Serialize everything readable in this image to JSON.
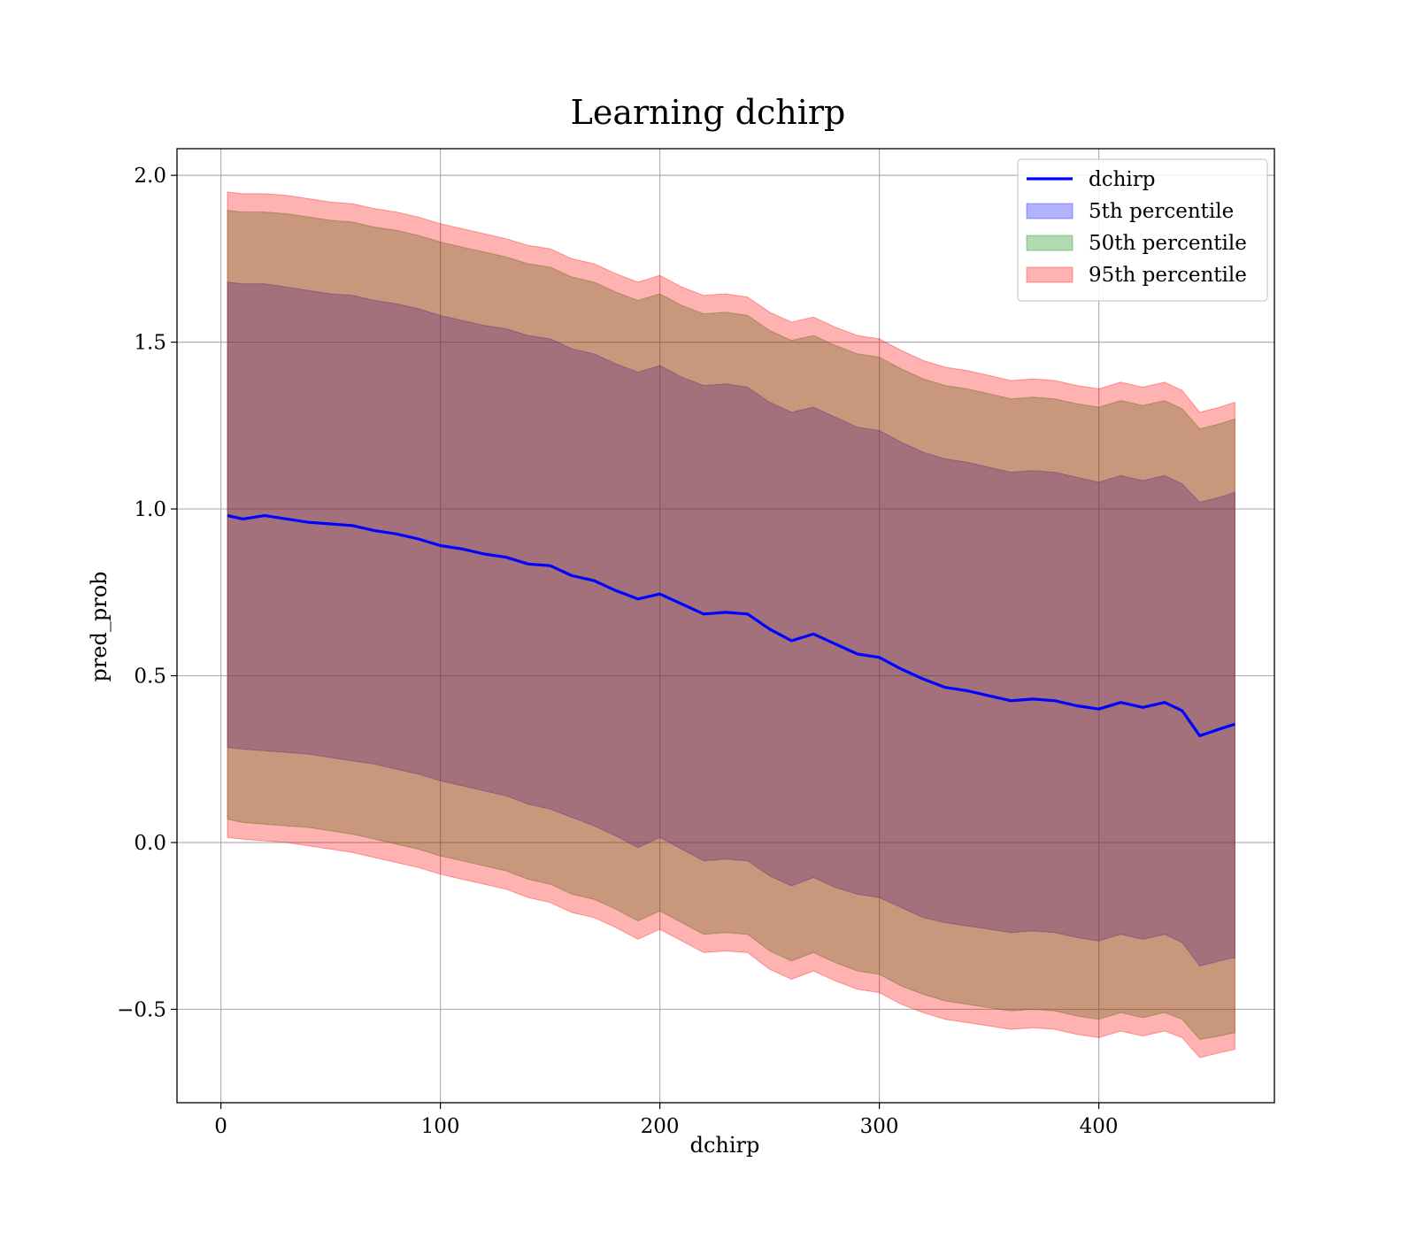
{
  "chart_data": {
    "type": "area",
    "title": "Learning dchirp",
    "xlabel": "dchirp",
    "ylabel": "pred_prob",
    "xlim": [
      -20,
      480
    ],
    "ylim": [
      -0.78,
      2.08
    ],
    "x_ticks": [
      0,
      100,
      200,
      300,
      400
    ],
    "x_tick_labels": [
      "0",
      "100",
      "200",
      "300",
      "400"
    ],
    "y_ticks": [
      -0.5,
      0.0,
      0.5,
      1.0,
      1.5,
      2.0
    ],
    "y_tick_labels": [
      "−0.5",
      "0.0",
      "0.5",
      "1.0",
      "1.5",
      "2.0"
    ],
    "grid": true,
    "legend_position": "top-right",
    "x": [
      3,
      10,
      20,
      30,
      40,
      50,
      60,
      70,
      80,
      90,
      100,
      110,
      120,
      130,
      140,
      150,
      160,
      170,
      180,
      190,
      200,
      210,
      220,
      230,
      240,
      250,
      260,
      270,
      280,
      290,
      300,
      310,
      320,
      330,
      340,
      350,
      360,
      370,
      380,
      390,
      400,
      410,
      420,
      430,
      438,
      446,
      455,
      462
    ],
    "series": [
      {
        "name": "dchirp",
        "kind": "line",
        "color": "#0000ff",
        "values": [
          0.98,
          0.97,
          0.98,
          0.97,
          0.96,
          0.955,
          0.95,
          0.935,
          0.925,
          0.91,
          0.89,
          0.88,
          0.865,
          0.855,
          0.835,
          0.83,
          0.8,
          0.785,
          0.755,
          0.73,
          0.745,
          0.715,
          0.685,
          0.69,
          0.685,
          0.64,
          0.605,
          0.625,
          0.595,
          0.565,
          0.555,
          0.52,
          0.49,
          0.465,
          0.455,
          0.44,
          0.425,
          0.43,
          0.425,
          0.41,
          0.4,
          0.42,
          0.405,
          0.42,
          0.395,
          0.32,
          0.34,
          0.355
        ]
      },
      {
        "name": "5th percentile",
        "kind": "band",
        "color": "#0000ff",
        "lower": [
          0.285,
          0.28,
          0.275,
          0.27,
          0.265,
          0.255,
          0.245,
          0.235,
          0.22,
          0.205,
          0.185,
          0.17,
          0.155,
          0.14,
          0.115,
          0.1,
          0.075,
          0.05,
          0.02,
          -0.015,
          0.015,
          -0.02,
          -0.055,
          -0.05,
          -0.055,
          -0.1,
          -0.13,
          -0.105,
          -0.135,
          -0.155,
          -0.165,
          -0.195,
          -0.225,
          -0.24,
          -0.25,
          -0.26,
          -0.27,
          -0.265,
          -0.27,
          -0.285,
          -0.295,
          -0.275,
          -0.29,
          -0.275,
          -0.3,
          -0.37,
          -0.355,
          -0.345
        ],
        "upper": [
          1.68,
          1.675,
          1.675,
          1.665,
          1.655,
          1.645,
          1.64,
          1.625,
          1.615,
          1.6,
          1.58,
          1.565,
          1.55,
          1.54,
          1.52,
          1.51,
          1.48,
          1.465,
          1.435,
          1.41,
          1.43,
          1.395,
          1.37,
          1.375,
          1.365,
          1.32,
          1.29,
          1.305,
          1.275,
          1.245,
          1.235,
          1.2,
          1.17,
          1.15,
          1.14,
          1.125,
          1.11,
          1.115,
          1.11,
          1.095,
          1.08,
          1.1,
          1.085,
          1.1,
          1.075,
          1.02,
          1.035,
          1.05
        ]
      },
      {
        "name": "50th percentile",
        "kind": "band",
        "color": "#008000",
        "lower": [
          0.07,
          0.06,
          0.055,
          0.05,
          0.045,
          0.035,
          0.025,
          0.01,
          -0.005,
          -0.02,
          -0.04,
          -0.055,
          -0.07,
          -0.085,
          -0.11,
          -0.125,
          -0.155,
          -0.17,
          -0.2,
          -0.235,
          -0.205,
          -0.24,
          -0.275,
          -0.27,
          -0.275,
          -0.325,
          -0.355,
          -0.33,
          -0.36,
          -0.385,
          -0.395,
          -0.43,
          -0.455,
          -0.475,
          -0.485,
          -0.495,
          -0.505,
          -0.5,
          -0.505,
          -0.52,
          -0.53,
          -0.51,
          -0.525,
          -0.51,
          -0.53,
          -0.59,
          -0.58,
          -0.57
        ],
        "upper": [
          1.895,
          1.89,
          1.89,
          1.885,
          1.875,
          1.865,
          1.86,
          1.845,
          1.835,
          1.82,
          1.8,
          1.785,
          1.77,
          1.755,
          1.735,
          1.725,
          1.695,
          1.68,
          1.65,
          1.625,
          1.645,
          1.61,
          1.585,
          1.59,
          1.58,
          1.535,
          1.505,
          1.52,
          1.49,
          1.465,
          1.455,
          1.42,
          1.39,
          1.37,
          1.36,
          1.345,
          1.33,
          1.335,
          1.33,
          1.315,
          1.305,
          1.325,
          1.31,
          1.325,
          1.3,
          1.24,
          1.255,
          1.27
        ]
      },
      {
        "name": "95th percentile",
        "kind": "band",
        "color": "#ff0000",
        "lower": [
          0.015,
          0.01,
          0.005,
          0.0,
          -0.01,
          -0.02,
          -0.03,
          -0.045,
          -0.06,
          -0.075,
          -0.095,
          -0.11,
          -0.125,
          -0.14,
          -0.165,
          -0.18,
          -0.21,
          -0.225,
          -0.255,
          -0.29,
          -0.26,
          -0.295,
          -0.33,
          -0.325,
          -0.33,
          -0.38,
          -0.41,
          -0.385,
          -0.415,
          -0.44,
          -0.45,
          -0.485,
          -0.51,
          -0.53,
          -0.54,
          -0.55,
          -0.56,
          -0.555,
          -0.56,
          -0.575,
          -0.585,
          -0.565,
          -0.58,
          -0.565,
          -0.585,
          -0.645,
          -0.63,
          -0.62
        ],
        "upper": [
          1.95,
          1.945,
          1.945,
          1.94,
          1.93,
          1.92,
          1.915,
          1.9,
          1.89,
          1.875,
          1.855,
          1.84,
          1.825,
          1.81,
          1.79,
          1.78,
          1.75,
          1.735,
          1.705,
          1.68,
          1.7,
          1.665,
          1.64,
          1.645,
          1.635,
          1.59,
          1.56,
          1.575,
          1.545,
          1.52,
          1.51,
          1.475,
          1.445,
          1.425,
          1.415,
          1.4,
          1.385,
          1.39,
          1.385,
          1.37,
          1.36,
          1.38,
          1.365,
          1.38,
          1.355,
          1.29,
          1.305,
          1.32
        ]
      }
    ]
  }
}
